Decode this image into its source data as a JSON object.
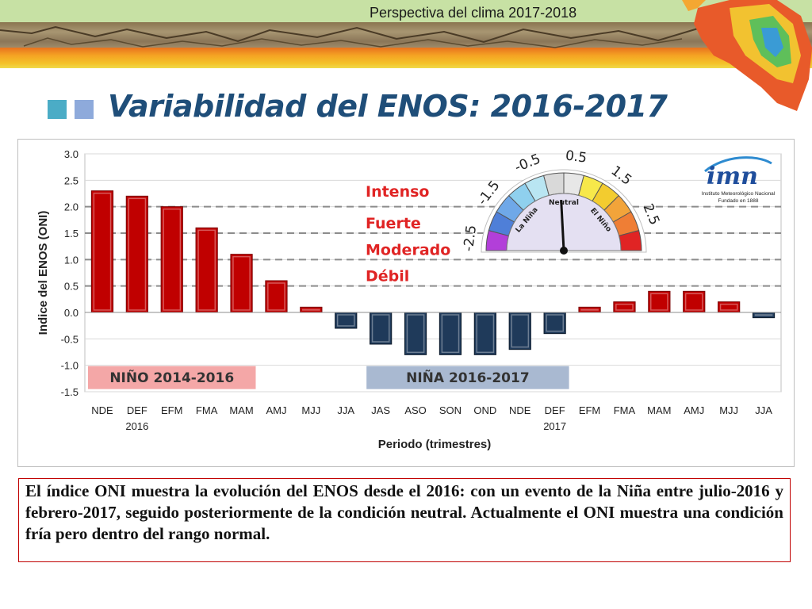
{
  "header": {
    "banner_title": "Perspectiva del clima 2017-2018",
    "slide_title": "Variabilidad del ENOS: 2016-2017"
  },
  "logo": {
    "name": "imn",
    "line1": "Instituto Meteorológico Nacional",
    "line2": "Fundado en 1888"
  },
  "chart_data": {
    "type": "bar",
    "ylabel": "Indice del ENOS (ONI)",
    "xlabel": "Periodo (trimestres)",
    "ylim": [
      -1.5,
      3.0
    ],
    "yticks": [
      "3.0",
      "2.5",
      "2.0",
      "1.5",
      "1.0",
      "0.5",
      "0.0",
      "-0.5",
      "-1.0",
      "-1.5"
    ],
    "categories": [
      "NDE",
      "DEF",
      "EFM",
      "FMA",
      "MAM",
      "AMJ",
      "MJJ",
      "JJA",
      "JAS",
      "ASO",
      "SON",
      "OND",
      "NDE",
      "DEF",
      "EFM",
      "FMA",
      "MAM",
      "AMJ",
      "MJJ",
      "JJA"
    ],
    "year_labels": [
      {
        "index": 1,
        "text": "2016"
      },
      {
        "index": 13,
        "text": "2017"
      }
    ],
    "values": [
      2.3,
      2.2,
      2.0,
      1.6,
      1.1,
      0.6,
      0.1,
      -0.3,
      -0.6,
      -0.8,
      -0.8,
      -0.8,
      -0.7,
      -0.4,
      0.1,
      0.2,
      0.4,
      0.4,
      0.2,
      -0.1
    ],
    "colors": {
      "positive": "#c00000",
      "negative": "#1f3a5a"
    },
    "threshold_lines": [
      2.0,
      1.5,
      1.0,
      0.5
    ],
    "intensity_labels": [
      {
        "text": "Intenso",
        "value": 2.25
      },
      {
        "text": "Fuerte",
        "value": 1.65
      },
      {
        "text": "Moderado",
        "value": 1.15
      },
      {
        "text": "Débil",
        "value": 0.65
      }
    ],
    "episodes": [
      {
        "label": "NIÑO 2014-2016",
        "color": "#f4a7a7",
        "from": 0,
        "to": 4
      },
      {
        "label": "NIÑA 2016-2017",
        "color": "#a9b9d1",
        "from": 8,
        "to": 13
      }
    ],
    "gauge": {
      "ticks": [
        "-2.5",
        "-1.5",
        "-0.5",
        "0.5",
        "1.5",
        "2.5"
      ],
      "labels": [
        "La Niña",
        "Neutral",
        "El Niño"
      ],
      "value": -0.1
    }
  },
  "caption": "El índice ONI muestra la evolución del ENOS desde el 2016: con un evento de la Niña entre julio-2016 y febrero-2017, seguido posteriormente de la condición neutral. Actualmente el ONI muestra una condición fría pero dentro del rango normal."
}
